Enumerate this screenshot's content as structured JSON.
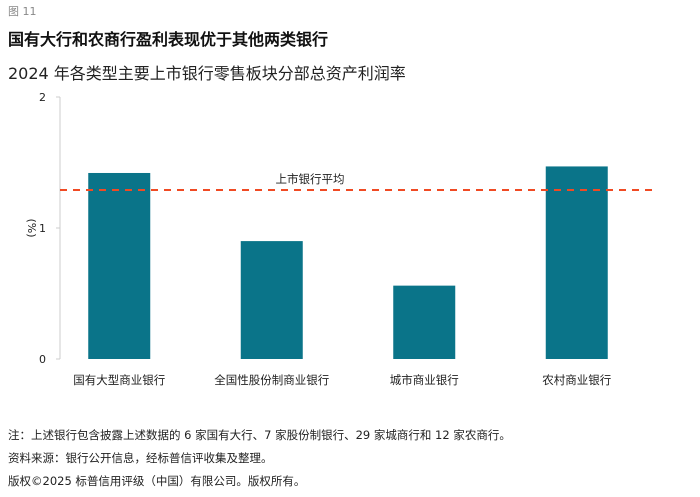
{
  "figure_label": "图 11",
  "title": "国有大行和农商行盈利表现优于其他两类银行",
  "subtitle": "2024 年各类型主要上市银行零售板块分部总资产利润率",
  "chart_data": {
    "type": "bar",
    "categories": [
      "国有大型商业银行",
      "全国性股份制商业银行",
      "城市商业银行",
      "农村商业银行"
    ],
    "values": [
      1.42,
      0.9,
      0.56,
      1.47
    ],
    "ylabel": "(%)",
    "ylim": [
      0,
      2
    ],
    "yticks": [
      "0",
      "1",
      "2"
    ],
    "reference_line": {
      "label": "上市银行平均",
      "value": 1.29,
      "color": "#f04a23"
    },
    "bar_color": "#0a7489",
    "grid": false
  },
  "notes": [
    "注：上述银行包含披露上述数据的 6 家国有大行、7 家股份制银行、29 家城商行和 12 家农商行。",
    "资料来源：银行公开信息，经标普信评收集及整理。",
    "版权©2025 标普信用评级（中国）有限公司。版权所有。"
  ]
}
